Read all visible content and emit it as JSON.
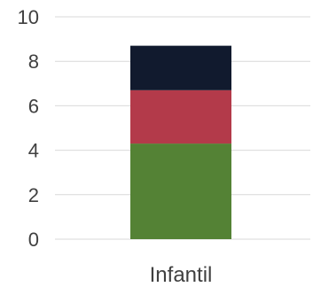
{
  "chart_data": {
    "type": "bar",
    "stacked": true,
    "categories": [
      "Infantil"
    ],
    "series": [
      {
        "values": [
          4.3
        ],
        "color": "#548235"
      },
      {
        "values": [
          2.4
        ],
        "color": "#b33a4a"
      },
      {
        "values": [
          2.0
        ],
        "color": "#111a2e"
      }
    ],
    "ylim": [
      0,
      10
    ],
    "yticks": [
      0,
      2,
      4,
      6,
      8,
      10
    ],
    "grid": true,
    "legend": "none",
    "title": "",
    "xlabel": "",
    "ylabel": ""
  }
}
